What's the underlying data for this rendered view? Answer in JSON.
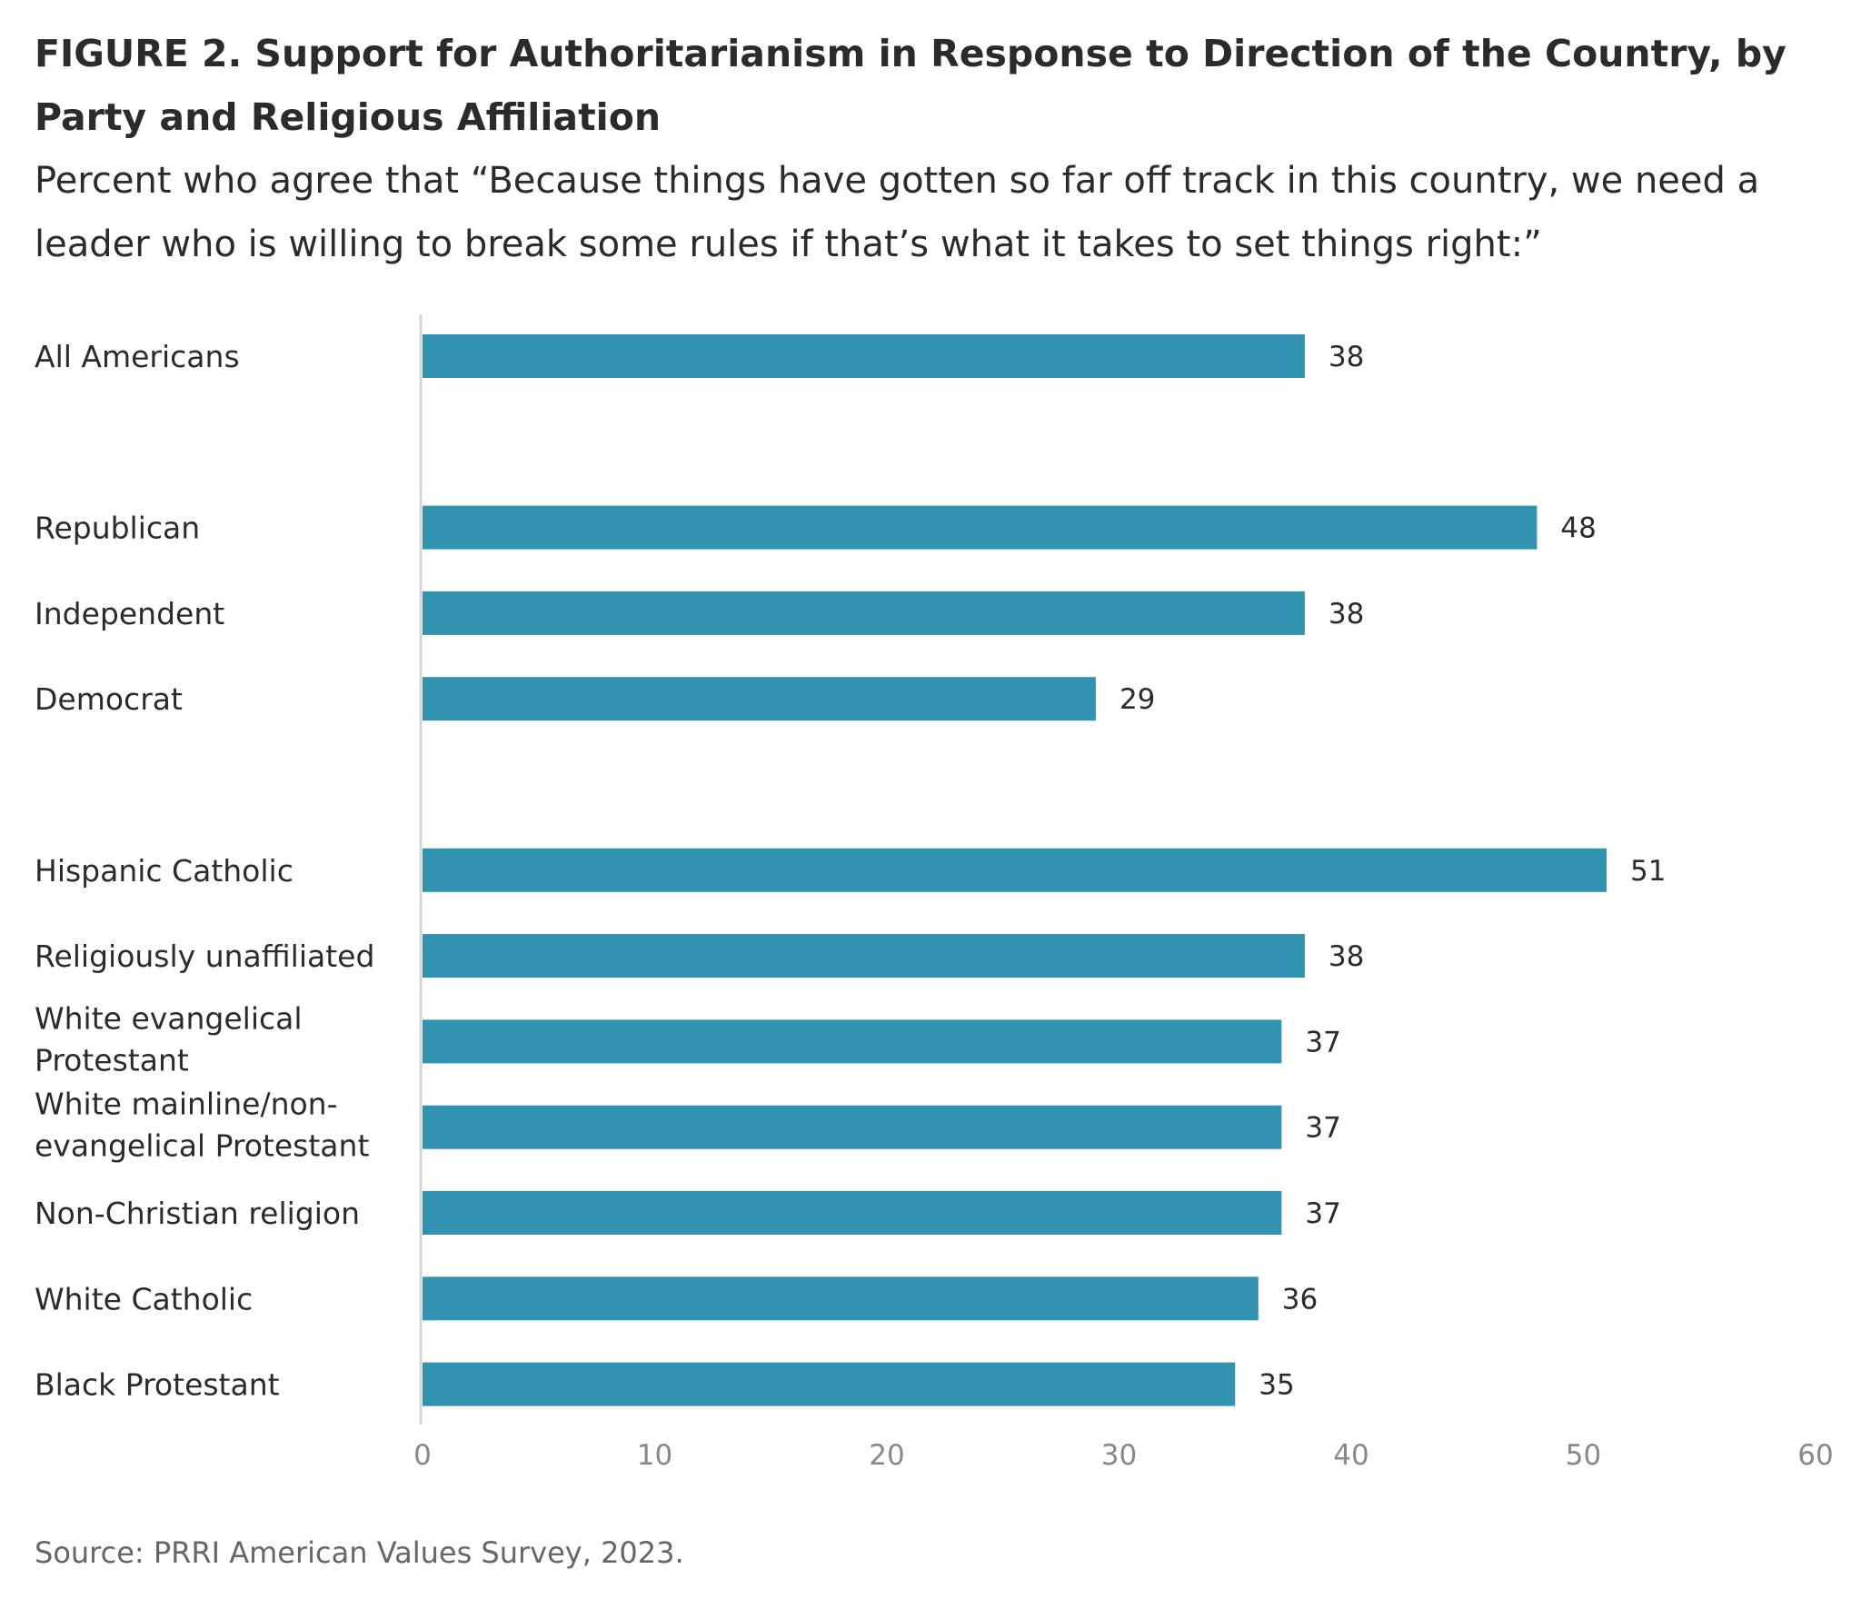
{
  "header": {
    "title": "FIGURE 2.  Support for Authoritarianism in Response to Direction of the Country, by Party and Religious Affiliation",
    "subtitle": "Percent who agree that “Because things have gotten so far off track in this country, we need a leader who is willing to break some rules if that’s what it takes to set things right:”"
  },
  "source": "Source: PRRI American Values Survey, 2023.",
  "colors": {
    "bar": "#3293b0",
    "axis": "#d6d6d6"
  },
  "chart_data": {
    "type": "bar",
    "orientation": "horizontal",
    "groups": [
      {
        "categories": [
          [
            "All Americans"
          ]
        ],
        "values": [
          38
        ]
      },
      {
        "categories": [
          [
            "Republican"
          ],
          [
            "Independent"
          ],
          [
            "Democrat"
          ]
        ],
        "values": [
          48,
          38,
          29
        ]
      },
      {
        "categories": [
          [
            "Hispanic Catholic"
          ],
          [
            "Religiously unaffiliated"
          ],
          [
            "White evangelical",
            "Protestant"
          ],
          [
            "White mainline/non-",
            "evangelical Protestant"
          ],
          [
            "Non-Christian religion"
          ],
          [
            "White Catholic"
          ],
          [
            "Black Protestant"
          ]
        ],
        "values": [
          51,
          38,
          37,
          37,
          37,
          36,
          35
        ]
      }
    ],
    "xlim": [
      0,
      60
    ],
    "xticks": [
      "0",
      "10",
      "20",
      "30",
      "40",
      "50",
      "60"
    ],
    "grid": false,
    "legend": "none",
    "data_labels": true
  }
}
